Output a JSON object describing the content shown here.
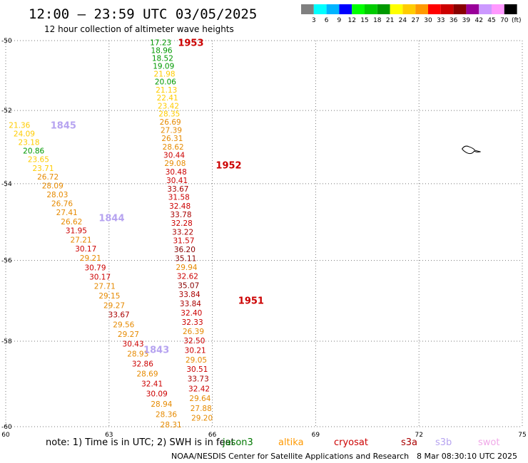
{
  "title": "12:00 – 23:59 UTC 03/05/2025",
  "subtitle": "12 hour collection of altimeter wave heights",
  "footer_note": "note: 1) Time is in UTC; 2) SWH is in feet",
  "credit": "NOAA/NESDIS Center for Satellite Applications and Research",
  "generated": "8 Mar 08:30:10 UTC 2025",
  "legend": {
    "unit": "(ft)",
    "colors": [
      "#808080",
      "#00ffff",
      "#00b4ff",
      "#0000ff",
      "#00ff00",
      "#00cc00",
      "#009900",
      "#ffff00",
      "#ffcc00",
      "#ff9900",
      "#ff0000",
      "#cc0000",
      "#880000",
      "#990099",
      "#cc99ff",
      "#ff99ff",
      "#000000"
    ],
    "labels": [
      "3",
      "6",
      "9",
      "12",
      "15",
      "18",
      "21",
      "24",
      "27",
      "30",
      "33",
      "36",
      "39",
      "42",
      "45",
      "70"
    ]
  },
  "satellites": [
    {
      "name": "jason3",
      "color": "#007700"
    },
    {
      "name": "altika",
      "color": "#ff9900"
    },
    {
      "name": "cryosat",
      "color": "#cc0000"
    },
    {
      "name": "s3a",
      "color": "#aa0000"
    },
    {
      "name": "s3b",
      "color": "#b6a3f0"
    },
    {
      "name": "swot",
      "color": "#f0a8e8"
    }
  ],
  "axes": {
    "lon_labels": [
      "60",
      "63",
      "66",
      "69",
      "72",
      "75"
    ],
    "lat_labels": [
      "-50",
      "-52",
      "-54",
      "-56",
      "-58",
      "-60"
    ]
  },
  "passes": [
    {
      "time": "1953",
      "color": "#cc0000",
      "lon": 65.0,
      "lat": -50.05
    },
    {
      "time": "1952",
      "color": "#cc0000",
      "lon": 66.1,
      "lat": -53.5
    },
    {
      "time": "1951",
      "color": "#cc0000",
      "lon": 66.75,
      "lat": -57.0
    },
    {
      "time": "1845",
      "color": "#b6a3f0",
      "lon": 61.3,
      "lat": -52.4
    },
    {
      "time": "1844",
      "color": "#b6a3f0",
      "lon": 62.7,
      "lat": -54.9
    },
    {
      "time": "1843",
      "color": "#b6a3f0",
      "lon": 64.0,
      "lat": -58.2
    }
  ],
  "tracks": [
    {
      "name": "track-1953-1951",
      "lon_start": 64.5,
      "lon_end": 65.7,
      "lat_start": -50.05,
      "lat_end": -59.8,
      "values": [
        {
          "v": "17.23",
          "c": "#009900"
        },
        {
          "v": "18.96",
          "c": "#009900"
        },
        {
          "v": "18.52",
          "c": "#009900"
        },
        {
          "v": "19.09",
          "c": "#009900"
        },
        {
          "v": "21.98",
          "c": "#ffcc00"
        },
        {
          "v": "20.06",
          "c": "#009900"
        },
        {
          "v": "21.13",
          "c": "#ffcc00"
        },
        {
          "v": "22.41",
          "c": "#ffcc00"
        },
        {
          "v": "23.42",
          "c": "#ffcc00"
        },
        {
          "v": "28.35",
          "c": "#ffcc00"
        },
        {
          "v": "26.69",
          "c": "#e68a00"
        },
        {
          "v": "27.39",
          "c": "#e68a00"
        },
        {
          "v": "26.31",
          "c": "#e68a00"
        },
        {
          "v": "28.62",
          "c": "#e68a00"
        },
        {
          "v": "30.44",
          "c": "#cc0000"
        },
        {
          "v": "29.08",
          "c": "#e68a00"
        },
        {
          "v": "30.48",
          "c": "#cc0000"
        },
        {
          "v": "30.41",
          "c": "#cc0000"
        },
        {
          "v": "33.67",
          "c": "#aa0000"
        },
        {
          "v": "31.58",
          "c": "#cc0000"
        },
        {
          "v": "32.48",
          "c": "#cc0000"
        },
        {
          "v": "33.78",
          "c": "#aa0000"
        },
        {
          "v": "32.28",
          "c": "#cc0000"
        },
        {
          "v": "33.22",
          "c": "#aa0000"
        },
        {
          "v": "31.57",
          "c": "#cc0000"
        },
        {
          "v": "36.20",
          "c": "#880000"
        },
        {
          "v": "35.11",
          "c": "#880000"
        },
        {
          "v": "29.94",
          "c": "#e68a00"
        },
        {
          "v": "32.62",
          "c": "#cc0000"
        },
        {
          "v": "35.07",
          "c": "#880000"
        },
        {
          "v": "33.84",
          "c": "#aa0000"
        },
        {
          "v": "33.84",
          "c": "#aa0000"
        },
        {
          "v": "32.40",
          "c": "#cc0000"
        },
        {
          "v": "32.33",
          "c": "#cc0000"
        },
        {
          "v": "26.39",
          "c": "#e68a00"
        },
        {
          "v": "32.50",
          "c": "#cc0000"
        },
        {
          "v": "30.21",
          "c": "#cc0000"
        },
        {
          "v": "29.05",
          "c": "#e68a00"
        },
        {
          "v": "30.51",
          "c": "#cc0000"
        },
        {
          "v": "33.73",
          "c": "#aa0000"
        },
        {
          "v": "32.42",
          "c": "#cc0000"
        },
        {
          "v": "29.64",
          "c": "#e68a00"
        },
        {
          "v": "27.88",
          "c": "#e68a00"
        },
        {
          "v": "29.20",
          "c": "#e68a00"
        }
      ]
    },
    {
      "name": "track-1845-1843",
      "lon_start": 60.4,
      "lon_end": 64.8,
      "lat_start": -52.4,
      "lat_end": -59.95,
      "values": [
        {
          "v": "21.36",
          "c": "#ffcc00"
        },
        {
          "v": "24.09",
          "c": "#ffcc00"
        },
        {
          "v": "23.18",
          "c": "#ffcc00"
        },
        {
          "v": "20.86",
          "c": "#009900"
        },
        {
          "v": "23.65",
          "c": "#ffcc00"
        },
        {
          "v": "23.71",
          "c": "#ffcc00"
        },
        {
          "v": "26.72",
          "c": "#e68a00"
        },
        {
          "v": "28.09",
          "c": "#e68a00"
        },
        {
          "v": "28.03",
          "c": "#e68a00"
        },
        {
          "v": "26.76",
          "c": "#e68a00"
        },
        {
          "v": "27.41",
          "c": "#e68a00"
        },
        {
          "v": "26.62",
          "c": "#e68a00"
        },
        {
          "v": "31.95",
          "c": "#cc0000"
        },
        {
          "v": "27.21",
          "c": "#e68a00"
        },
        {
          "v": "30.17",
          "c": "#cc0000"
        },
        {
          "v": "29.21",
          "c": "#e68a00"
        },
        {
          "v": "30.79",
          "c": "#cc0000"
        },
        {
          "v": "30.17",
          "c": "#cc0000"
        },
        {
          "v": "27.71",
          "c": "#e68a00"
        },
        {
          "v": "29.15",
          "c": "#e68a00"
        },
        {
          "v": "29.27",
          "c": "#e68a00"
        },
        {
          "v": "33.67",
          "c": "#aa0000"
        },
        {
          "v": "29.56",
          "c": "#e68a00"
        },
        {
          "v": "29.27",
          "c": "#e68a00"
        },
        {
          "v": "30.43",
          "c": "#cc0000"
        },
        {
          "v": "28.93",
          "c": "#e68a00"
        },
        {
          "v": "32.86",
          "c": "#cc0000"
        },
        {
          "v": "28.69",
          "c": "#e68a00"
        },
        {
          "v": "32.41",
          "c": "#cc0000"
        },
        {
          "v": "30.09",
          "c": "#cc0000"
        },
        {
          "v": "28.94",
          "c": "#e68a00"
        },
        {
          "v": "28.36",
          "c": "#e68a00"
        },
        {
          "v": "28.31",
          "c": "#e68a00"
        }
      ]
    }
  ],
  "land": {
    "name": "heard-island",
    "lon": 73.5,
    "lat": -53.1
  }
}
